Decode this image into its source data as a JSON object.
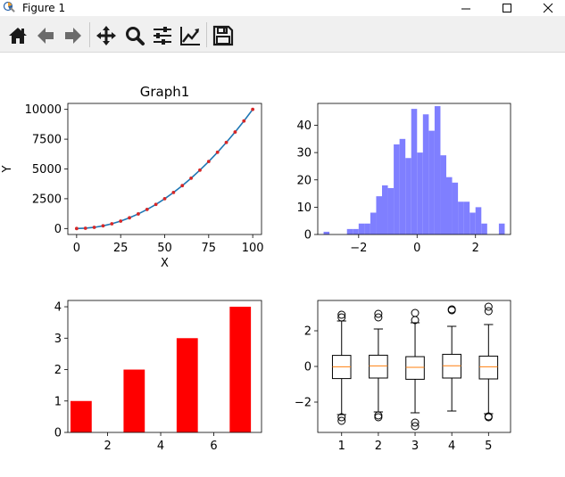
{
  "window": {
    "title": "Figure 1",
    "controls": [
      "minimize",
      "maximize",
      "close"
    ]
  },
  "toolbar": {
    "buttons": [
      {
        "name": "home",
        "icon": "home-icon"
      },
      {
        "name": "back",
        "icon": "arrow-left-icon"
      },
      {
        "name": "forward",
        "icon": "arrow-right-icon"
      },
      {
        "name": "pan",
        "icon": "move-icon"
      },
      {
        "name": "zoom",
        "icon": "magnifier-icon"
      },
      {
        "name": "configure-subplots",
        "icon": "sliders-icon"
      },
      {
        "name": "edit-axis",
        "icon": "line-chart-icon"
      },
      {
        "name": "save",
        "icon": "floppy-disk-icon"
      }
    ]
  },
  "chart_data": [
    {
      "type": "line",
      "title": "Graph1",
      "xlabel": "X",
      "ylabel": "Y",
      "xlim": [
        -5,
        105
      ],
      "ylim": [
        -500,
        10500
      ],
      "xticks": [
        0,
        25,
        50,
        75,
        100
      ],
      "yticks": [
        0,
        2500,
        5000,
        7500,
        10000
      ],
      "line_color": "#1f77b4",
      "marker_color": "#d62728",
      "x": [
        0,
        5,
        10,
        15,
        20,
        25,
        30,
        35,
        40,
        45,
        50,
        55,
        60,
        65,
        70,
        75,
        80,
        85,
        90,
        95,
        100
      ],
      "y": [
        0,
        25,
        100,
        225,
        400,
        625,
        900,
        1225,
        1600,
        2025,
        2500,
        3025,
        3600,
        4225,
        4900,
        5625,
        6400,
        7225,
        8100,
        9025,
        10000
      ]
    },
    {
      "type": "bar",
      "subtype": "histogram",
      "color": "#7f7fff",
      "xlim": [
        -3.4,
        3.2
      ],
      "ylim": [
        0,
        48
      ],
      "xticks": [
        -2,
        0,
        2
      ],
      "yticks": [
        0,
        10,
        20,
        30,
        40
      ],
      "bin_edges": [
        -3.2,
        -3.0,
        -2.8,
        -2.6,
        -2.4,
        -2.2,
        -2.0,
        -1.8,
        -1.6,
        -1.4,
        -1.2,
        -1.0,
        -0.8,
        -0.6,
        -0.4,
        -0.2,
        0.0,
        0.2,
        0.4,
        0.6,
        0.8,
        1.0,
        1.2,
        1.4,
        1.6,
        1.8,
        2.0,
        2.2,
        2.4,
        2.6,
        2.8,
        3.0
      ],
      "counts": [
        1,
        0,
        0,
        0,
        2,
        2,
        4,
        4,
        8,
        14,
        18,
        17,
        33,
        35,
        28,
        46,
        30,
        44,
        38,
        47,
        29,
        21,
        19,
        12,
        12,
        8,
        10,
        4,
        0,
        0,
        4
      ]
    },
    {
      "type": "bar",
      "color": "#ff0000",
      "xlim": [
        0.5,
        7.8
      ],
      "ylim": [
        0,
        4.2
      ],
      "xticks": [
        2,
        4,
        6
      ],
      "yticks": [
        0,
        1,
        2,
        3,
        4
      ],
      "categories": [
        1,
        3,
        5,
        7
      ],
      "values": [
        1,
        2,
        3,
        4
      ]
    },
    {
      "type": "box",
      "xlim": [
        0.35,
        5.6
      ],
      "ylim": [
        -3.7,
        3.7
      ],
      "xticks": [
        1,
        2,
        3,
        4,
        5
      ],
      "yticks": [
        -2,
        0,
        2
      ],
      "median_color": "#ff7f0e",
      "boxes": [
        {
          "label": "1",
          "q1": -0.68,
          "median": -0.02,
          "q3": 0.62,
          "whisker_low": -2.7,
          "whisker_high": 2.55,
          "outliers": [
            2.9,
            2.75,
            -2.85,
            -3.05
          ]
        },
        {
          "label": "2",
          "q1": -0.65,
          "median": 0.03,
          "q3": 0.63,
          "whisker_low": -2.55,
          "whisker_high": 2.1,
          "outliers": [
            2.95,
            2.75,
            -2.75,
            -2.85
          ]
        },
        {
          "label": "3",
          "q1": -0.72,
          "median": -0.05,
          "q3": 0.55,
          "whisker_low": -2.6,
          "whisker_high": 2.45,
          "outliers": [
            3.0,
            2.6,
            -3.15,
            -3.35
          ]
        },
        {
          "label": "4",
          "q1": -0.65,
          "median": 0.04,
          "q3": 0.68,
          "whisker_low": -2.5,
          "whisker_high": 2.25,
          "outliers": [
            3.2,
            3.15
          ]
        },
        {
          "label": "5",
          "q1": -0.7,
          "median": -0.02,
          "q3": 0.58,
          "whisker_low": -2.65,
          "whisker_high": 2.35,
          "outliers": [
            3.35,
            3.1,
            -2.8,
            -2.85
          ]
        }
      ]
    }
  ]
}
